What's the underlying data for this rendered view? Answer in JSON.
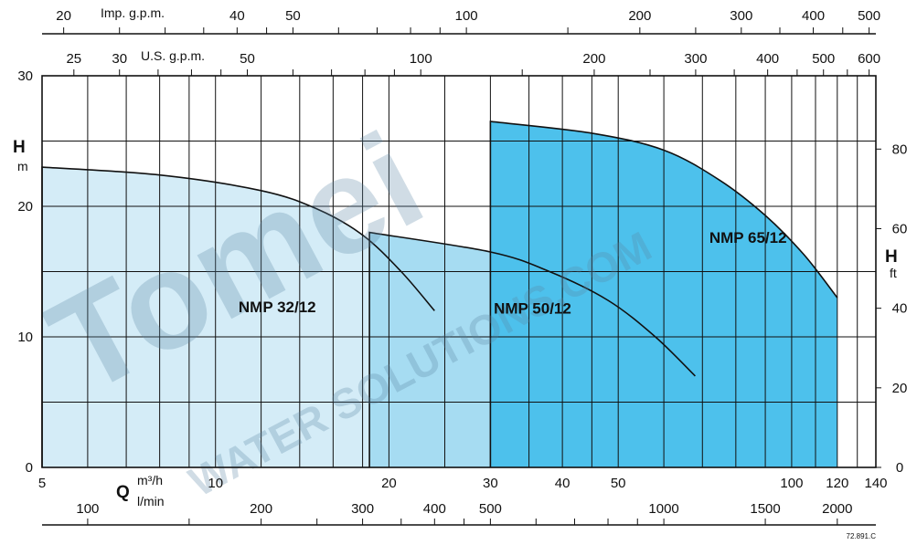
{
  "chart_data": {
    "type": "area",
    "x_axis": {
      "label": "Q",
      "units": [
        "m³/h",
        "l/min"
      ],
      "scale": "log",
      "range": [
        5,
        140
      ],
      "ticks": [
        {
          "value": 5,
          "label": "5"
        },
        {
          "value": 10,
          "label": "10"
        },
        {
          "value": 20,
          "label": "20"
        },
        {
          "value": 30,
          "label": "30"
        },
        {
          "value": 40,
          "label": "40"
        },
        {
          "value": 50,
          "label": "50"
        },
        {
          "value": 100,
          "label": "100"
        },
        {
          "value": 120,
          "label": "120"
        },
        {
          "value": 140,
          "label": "140"
        }
      ],
      "lmin_ticks": [
        {
          "value": 100,
          "label": "100"
        },
        {
          "value": 200,
          "label": "200"
        },
        {
          "value": 300,
          "label": "300"
        },
        {
          "value": 400,
          "label": "400"
        },
        {
          "value": 500,
          "label": "500"
        },
        {
          "value": 1000,
          "label": "1000"
        },
        {
          "value": 1500,
          "label": "1500"
        },
        {
          "value": 2000,
          "label": "2000"
        }
      ]
    },
    "top_axes": [
      {
        "label": "Imp. g.p.m.",
        "ticks": [
          {
            "value": 20,
            "label": "20"
          },
          {
            "value": 40,
            "label": "40"
          },
          {
            "value": 50,
            "label": "50"
          },
          {
            "value": 100,
            "label": "100"
          },
          {
            "value": 200,
            "label": "200"
          },
          {
            "value": 300,
            "label": "300"
          },
          {
            "value": 400,
            "label": "400"
          },
          {
            "value": 500,
            "label": "500"
          }
        ]
      },
      {
        "label": "U.S. g.p.m.",
        "ticks": [
          {
            "value": 25,
            "label": "25"
          },
          {
            "value": 30,
            "label": "30"
          },
          {
            "value": 50,
            "label": "50"
          },
          {
            "value": 100,
            "label": "100"
          },
          {
            "value": 200,
            "label": "200"
          },
          {
            "value": 300,
            "label": "300"
          },
          {
            "value": 400,
            "label": "400"
          },
          {
            "value": 500,
            "label": "500"
          },
          {
            "value": 600,
            "label": "600"
          }
        ]
      }
    ],
    "y_axis": {
      "label": "H",
      "unit": "m",
      "range": [
        0,
        30
      ],
      "ticks": [
        {
          "value": 0,
          "label": "0"
        },
        {
          "value": 10,
          "label": "10"
        },
        {
          "value": 20,
          "label": "20"
        },
        {
          "value": 30,
          "label": "30"
        }
      ]
    },
    "y2_axis": {
      "label": "H",
      "unit": "ft",
      "ticks": [
        {
          "value": 0,
          "label": "0"
        },
        {
          "value": 20,
          "label": "20"
        },
        {
          "value": 40,
          "label": "40"
        },
        {
          "value": 60,
          "label": "60"
        },
        {
          "value": 80,
          "label": "80"
        }
      ]
    },
    "grid": true,
    "series": [
      {
        "name": "NMP 32/12",
        "color": "#d4ecf7",
        "points": [
          [
            5,
            23.0
          ],
          [
            8,
            22.4
          ],
          [
            12,
            21.2
          ],
          [
            15,
            19.8
          ],
          [
            18,
            17.8
          ],
          [
            21,
            15.0
          ],
          [
            24,
            12.0
          ]
        ],
        "bottom": 0
      },
      {
        "name": "NMP 50/12",
        "color": "#a6dcf2",
        "points": [
          [
            18.5,
            18.0
          ],
          [
            30,
            16.5
          ],
          [
            38,
            15.0
          ],
          [
            48,
            12.8
          ],
          [
            58,
            10.0
          ],
          [
            68,
            7.0
          ]
        ],
        "bottom": 0
      },
      {
        "name": "NMP 65/12",
        "color": "#4dc1ec",
        "points": [
          [
            30,
            26.5
          ],
          [
            45,
            25.6
          ],
          [
            60,
            24.3
          ],
          [
            75,
            22.0
          ],
          [
            90,
            19.3
          ],
          [
            105,
            16.3
          ],
          [
            120,
            13.0
          ]
        ],
        "bottom": 0
      }
    ],
    "watermark": {
      "brand": "Tomei",
      "tagline": "WATER SOLUTIONS.COM"
    },
    "footnote": "72.891.C"
  }
}
